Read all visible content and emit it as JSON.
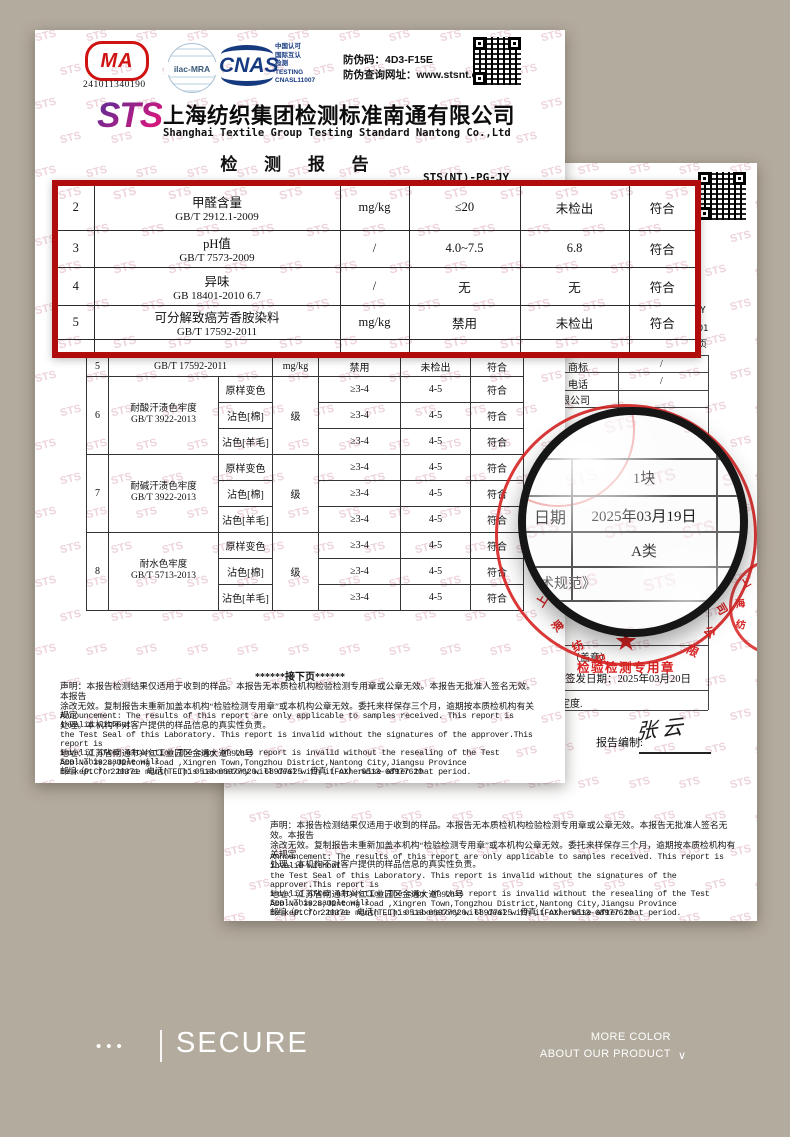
{
  "watermark": {
    "text": "STS"
  },
  "certs": {
    "ma_text": "MA",
    "ma_number": "241011340190",
    "ilac": "ilac-MRA",
    "cnas": "CNAS",
    "cnas_lines": [
      "中国认可",
      "国际互认",
      "检测",
      "TESTING",
      "CNASL11007"
    ],
    "anti_fake_code": "防伪码：4D3-F15E",
    "anti_fake_url": "防伪查询网址：www.stsnt.cn"
  },
  "company": {
    "logo": "STS",
    "name_cn": "上海纺织集团检测标准南通有限公司",
    "name_en": "Shanghai Textile Group Testing Standard Nantong Co.,Ltd"
  },
  "report": {
    "title": "检 测 报 告",
    "code": "STS(NT)-PG-JY"
  },
  "red_table": {
    "rows": [
      {
        "no": "2",
        "item": "甲醛含量",
        "standard": "GB/T 2912.1-2009",
        "unit": "mg/kg",
        "requirement": "≤20",
        "result": "未检出",
        "conclusion": "符合"
      },
      {
        "no": "3",
        "item": "pH值",
        "standard": "GB/T 7573-2009",
        "unit": "/",
        "requirement": "4.0~7.5",
        "result": "6.8",
        "conclusion": "符合"
      },
      {
        "no": "4",
        "item": "异味",
        "standard": "GB 18401-2010 6.7",
        "unit": "/",
        "requirement": "无",
        "result": "无",
        "conclusion": "符合"
      },
      {
        "no": "5",
        "item": "可分解致癌芳香胺染料",
        "standard": "GB/T 17592-2011",
        "unit": "mg/kg",
        "requirement": "禁用",
        "result": "未检出",
        "conclusion": "符合"
      }
    ]
  },
  "lower_table": {
    "partial": {
      "no": "5",
      "standard": "GB/T 17592-2011",
      "unit": "mg/kg",
      "requirement": "禁用",
      "result": "未检出",
      "conclusion": "符合"
    },
    "groups": [
      {
        "no": "6",
        "item": "耐酸汗渍色牢度",
        "standard": "GB/T 3922-2013",
        "unit": "级",
        "subrows": [
          {
            "name": "原样变色",
            "requirement": "≥3-4",
            "result": "4-5",
            "conclusion": "符合"
          },
          {
            "name": "沾色[棉]",
            "requirement": "≥3-4",
            "result": "4-5",
            "conclusion": "符合"
          },
          {
            "name": "沾色[羊毛]",
            "requirement": "≥3-4",
            "result": "4-5",
            "conclusion": "符合"
          }
        ]
      },
      {
        "no": "7",
        "item": "耐碱汗渍色牢度",
        "standard": "GB/T 3922-2013",
        "unit": "级",
        "subrows": [
          {
            "name": "原样变色",
            "requirement": "≥3-4",
            "result": "4-5",
            "conclusion": "符合"
          },
          {
            "name": "沾色[棉]",
            "requirement": "≥3-4",
            "result": "4-5",
            "conclusion": "符合"
          },
          {
            "name": "沾色[羊毛]",
            "requirement": "≥3-4",
            "result": "4-5",
            "conclusion": "符合"
          }
        ]
      },
      {
        "no": "8",
        "item": "耐水色牢度",
        "standard": "GB/T 5713-2013",
        "unit": "级",
        "subrows": [
          {
            "name": "原样变色",
            "requirement": "≥3-4",
            "result": "4-5",
            "conclusion": "符合"
          },
          {
            "name": "沾色[棉]",
            "requirement": "≥3-4",
            "result": "4-5",
            "conclusion": "符合"
          },
          {
            "name": "沾色[羊毛]",
            "requirement": "≥3-4",
            "result": "4-5",
            "conclusion": "符合"
          }
        ]
      }
    ]
  },
  "footer": {
    "next_page": "******接下页******",
    "statement_cn": [
      "声明：本报告检测结果仅适用于收到的样品。本报告无本质检机构检验检测专用章或公章无效。本报告无批准人签名无效。本报告",
      "涂改无效。复制报告未重新加盖本机构“检验检测专用章”或本机构公章无效。委托来样保存三个月，逾期按本质检机构有关规定",
      "处理。本机构不对客户提供的样品信息的真实性负责。"
    ],
    "statement_en": [
      "Announcement: The results of this report are only applicable to samples received. This report is invalid without",
      "the Test Seal of this Laboratory. This report is invalid without the signatures of the approver.This report is",
      "invalid after alteration.The copy of this report is invalid without the resealing of the Test Seal.This sample will",
      "be kept for three month .This Laboratory will deal with it otherwise after that period."
    ],
    "address_cn": "地址：江苏省南通市兴仁工业园区金通大道3928号",
    "address_en": "ADD:No.3928,Jintong road ,Xingren Town,Tongzhou District,Nantong City,Jiangsu Province",
    "contact": "邮编（P.C）：226371　电话(TEL)：0513-68977620、68977625　传真（FAX）:0513-68977620"
  },
  "doc2": {
    "clip_code": "Y",
    "clip_num": "01",
    "clip_page": "页",
    "info": {
      "brand_label": "商标",
      "brand_value": "/",
      "phone_label": "电话",
      "phone_value": "/",
      "company_partial": "限公司"
    },
    "magnified": {
      "qty": "1块",
      "date_label": "日期",
      "date_value": "2025年03月19日",
      "category": "A类",
      "spec_partial": "术规范》"
    },
    "seal_hint": "（盖章）",
    "issue_date": "签发日期：2025年03月20日",
    "tail_text": "定度.",
    "compiler_label": "报告编制:",
    "compiler_name": "张云",
    "stamp": {
      "title": "检验检测专用章",
      "ring_left": [
        "上",
        "海",
        "纺",
        "织"
      ],
      "ring_right": [
        "限",
        "公",
        "司"
      ]
    }
  },
  "bottom": {
    "dots": "•••",
    "brand": "SECURE",
    "more_line1": "MORE COLOR",
    "more_line2": "ABOUT OUR PRODUCT",
    "chevron": "∨"
  }
}
